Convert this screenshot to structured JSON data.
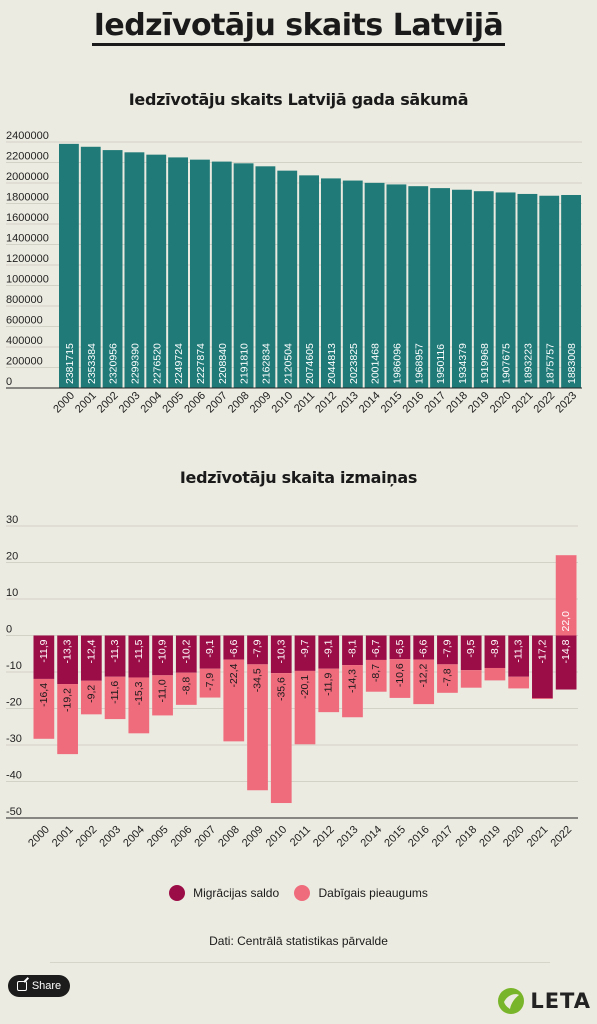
{
  "main_title": "Iedzīvotāju skaits Latvijā",
  "source_text": "Dati: Centrālā statistikas pārvalde",
  "share_label": "Share",
  "logo_text": "LETA",
  "legend": [
    {
      "label": "Migrācijas saldo",
      "color": "#9b0d47"
    },
    {
      "label": "Dabīgais pieaugums",
      "color": "#ef6c7d"
    }
  ],
  "chart_data": [
    {
      "type": "bar",
      "title": "Iedzīvotāju skaits Latvijā gada sākumā",
      "categories": [
        "2000",
        "2001",
        "2002",
        "2003",
        "2004",
        "2005",
        "2006",
        "2007",
        "2008",
        "2009",
        "2010",
        "2011",
        "2012",
        "2013",
        "2014",
        "2015",
        "2016",
        "2017",
        "2018",
        "2019",
        "2020",
        "2021",
        "2022",
        "2023"
      ],
      "values": [
        2381715,
        2353384,
        2320956,
        2299390,
        2276520,
        2249724,
        2227874,
        2208840,
        2191810,
        2162834,
        2120504,
        2074605,
        2044813,
        2023825,
        2001468,
        1986096,
        1968957,
        1950116,
        1934379,
        1919968,
        1907675,
        1893223,
        1875757,
        1883008
      ],
      "y_ticks": [
        "0",
        "200000",
        "400000",
        "600000",
        "800000",
        "1000000",
        "1200000",
        "1400000",
        "1600000",
        "1800000",
        "2000000",
        "2200000",
        "2400000"
      ],
      "ylim": [
        0,
        2400000
      ],
      "color": "#1f7a78",
      "grid": true
    },
    {
      "type": "bar",
      "stacked": true,
      "title": "Iedzīvotāju skaita izmaiņas",
      "categories": [
        "2000",
        "2001",
        "2002",
        "2003",
        "2004",
        "2005",
        "2006",
        "2007",
        "2008",
        "2009",
        "2010",
        "2011",
        "2012",
        "2013",
        "2014",
        "2015",
        "2016",
        "2017",
        "2018",
        "2019",
        "2020",
        "2021",
        "2022"
      ],
      "series": [
        {
          "name": "Migrācijas saldo",
          "color": "#9b0d47",
          "values": [
            -11.9,
            -13.3,
            -12.4,
            -11.3,
            -11.5,
            -10.9,
            -10.2,
            -9.1,
            -6.6,
            -7.9,
            -10.3,
            -9.7,
            -9.1,
            -8.1,
            -6.7,
            -6.5,
            -6.6,
            -7.9,
            -9.5,
            -8.9,
            -11.3,
            -17.2,
            -14.8
          ],
          "labels": [
            "-11,9",
            "-13,3",
            "-12,4",
            "-11,3",
            "-11,5",
            "-10,9",
            "-10,2",
            "-9,1",
            "-6,6",
            "-7,9",
            "-10,3",
            "-9,7",
            "-9,1",
            "-8,1",
            "-6,7",
            "-6,5",
            "-6,6",
            "-7,9",
            "-9,5",
            "-8,9",
            "-11,3",
            "-17,2",
            "-14,8"
          ]
        },
        {
          "name": "Dabīgais pieaugums",
          "color": "#ef6c7d",
          "values": [
            -16.4,
            -19.2,
            -9.2,
            -11.6,
            -15.3,
            -11.0,
            -8.8,
            -7.9,
            -22.4,
            -34.5,
            -35.6,
            -20.1,
            -11.9,
            -14.3,
            -8.7,
            -10.6,
            -12.2,
            -7.8,
            -4.8,
            -3.4,
            -3.2,
            -0.2,
            22.0
          ],
          "labels": [
            "-16,4",
            "-19,2",
            "-9,2",
            "-11,6",
            "-15,3",
            "-11,0",
            "-8,8",
            "-7,9",
            "-22,4",
            "-34,5",
            "-35,6",
            "-20,1",
            "-11,9",
            "-14,3",
            "-8,7",
            "-10,6",
            "-12,2",
            "-7,8",
            "",
            "",
            "",
            "",
            "22,0"
          ]
        }
      ],
      "y_ticks": [
        "30",
        "20",
        "10",
        "0",
        "-10",
        "-20",
        "-30",
        "-40",
        "-50"
      ],
      "ylim": [
        -50,
        30
      ],
      "grid": true
    }
  ]
}
